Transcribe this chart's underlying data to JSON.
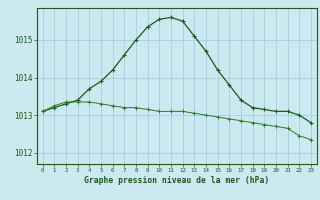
{
  "title": "Graphe pression niveau de la mer (hPa)",
  "background_color": "#cce8f0",
  "grid_color": "#99ccdd",
  "line_color": "#1a5c1a",
  "line_color2": "#2d7a2d",
  "x_ticks": [
    0,
    1,
    2,
    3,
    4,
    5,
    6,
    7,
    8,
    9,
    10,
    11,
    12,
    13,
    14,
    15,
    16,
    17,
    18,
    19,
    20,
    21,
    22,
    23
  ],
  "ylim": [
    1011.7,
    1015.85
  ],
  "yticks": [
    1012,
    1013,
    1014,
    1015
  ],
  "series1_x": [
    0,
    1,
    2,
    3,
    4,
    5,
    6,
    7,
    8,
    9,
    10,
    11,
    12,
    13,
    14,
    15,
    16,
    17,
    18,
    19,
    20,
    21,
    22,
    23
  ],
  "series1_y": [
    1013.1,
    1013.2,
    1013.3,
    1013.4,
    1013.7,
    1013.9,
    1014.2,
    1014.6,
    1015.0,
    1015.35,
    1015.55,
    1015.6,
    1015.5,
    1015.1,
    1014.7,
    1014.2,
    1013.8,
    1013.4,
    1013.2,
    1013.15,
    1013.1,
    1013.1,
    1013.0,
    1012.8
  ],
  "series2_x": [
    0,
    1,
    2,
    3,
    4,
    5,
    6,
    7,
    8,
    9,
    10,
    11,
    12,
    13,
    14,
    15,
    16,
    17,
    18,
    19,
    20,
    21,
    22,
    23
  ],
  "series2_y": [
    1013.1,
    1013.25,
    1013.35,
    1013.35,
    1013.35,
    1013.3,
    1013.25,
    1013.2,
    1013.2,
    1013.15,
    1013.1,
    1013.1,
    1013.1,
    1013.05,
    1013.0,
    1012.95,
    1012.9,
    1012.85,
    1012.8,
    1012.75,
    1012.7,
    1012.65,
    1012.45,
    1012.35
  ]
}
